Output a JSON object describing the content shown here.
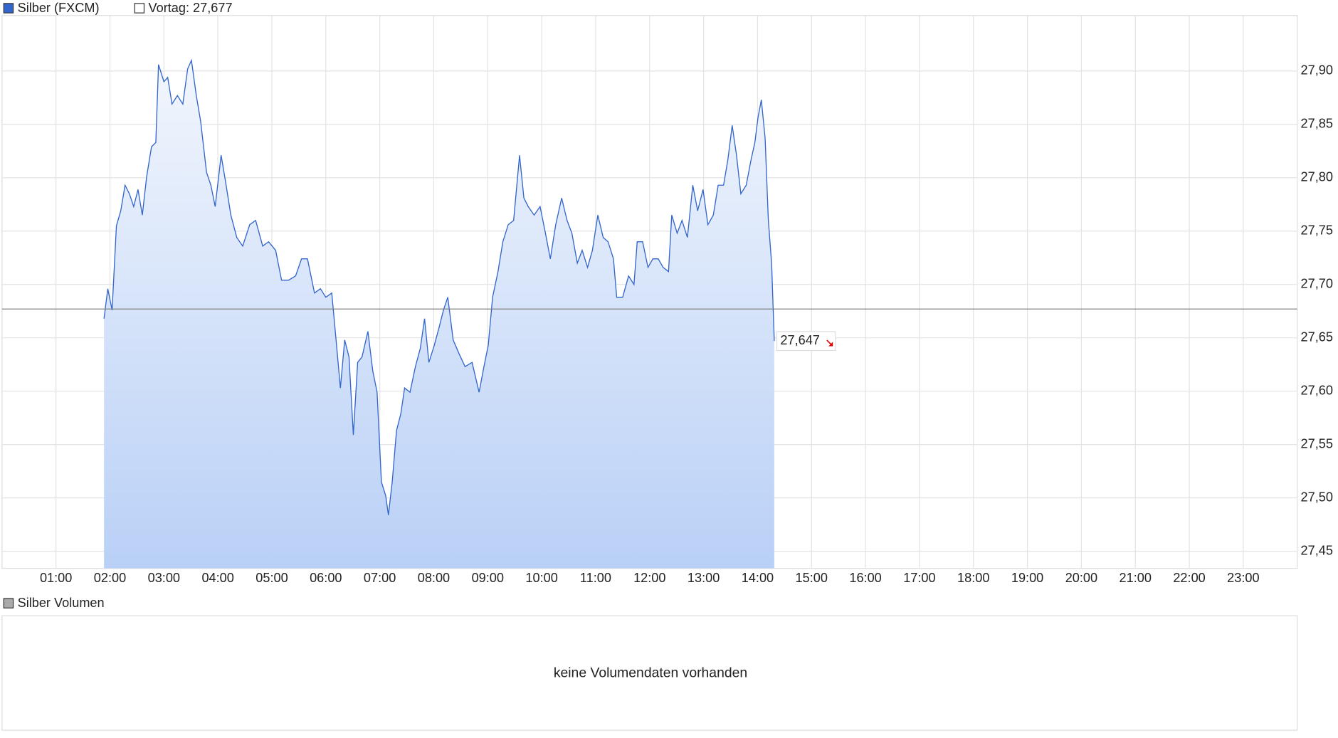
{
  "chart_data": [
    {
      "type": "area",
      "series": [
        {
          "name": "Silber (FXCM)",
          "color": "#3366cc",
          "x": [
            1.89,
            1.96,
            2.04,
            2.12,
            2.2,
            2.28,
            2.36,
            2.44,
            2.52,
            2.6,
            2.68,
            2.77,
            2.85,
            2.9,
            3.0,
            3.07,
            3.15,
            3.25,
            3.35,
            3.44,
            3.51,
            3.6,
            3.68,
            3.79,
            3.87,
            3.95,
            4.06,
            4.14,
            4.24,
            4.35,
            4.46,
            4.59,
            4.7,
            4.83,
            4.94,
            5.07,
            5.18,
            5.31,
            5.44,
            5.55,
            5.66,
            5.79,
            5.9,
            6.0,
            6.11,
            6.19,
            6.27,
            6.35,
            6.43,
            6.51,
            6.59,
            6.67,
            6.78,
            6.87,
            6.95,
            7.03,
            7.11,
            7.16,
            7.23,
            7.31,
            7.39,
            7.46,
            7.56,
            7.66,
            7.75,
            7.83,
            7.91,
            8.01,
            8.1,
            8.18,
            8.26,
            8.36,
            8.47,
            8.58,
            8.71,
            8.84,
            8.93,
            9.01,
            9.09,
            9.19,
            9.28,
            9.38,
            9.48,
            9.59,
            9.67,
            9.75,
            9.86,
            9.97,
            10.07,
            10.16,
            10.26,
            10.37,
            10.47,
            10.56,
            10.66,
            10.75,
            10.85,
            10.94,
            11.04,
            11.14,
            11.23,
            11.33,
            11.39,
            11.5,
            11.61,
            11.71,
            11.77,
            11.87,
            11.97,
            12.06,
            12.16,
            12.25,
            12.35,
            12.41,
            12.51,
            12.6,
            12.7,
            12.8,
            12.89,
            12.99,
            13.08,
            13.18,
            13.27,
            13.37,
            13.45,
            13.53,
            13.61,
            13.69,
            13.79,
            13.88,
            13.95,
            14.01,
            14.07,
            14.14,
            14.2,
            14.26,
            14.31
          ],
          "values": [
            27.668,
            27.696,
            27.676,
            27.755,
            27.769,
            27.793,
            27.785,
            27.773,
            27.789,
            27.765,
            27.801,
            27.829,
            27.833,
            27.906,
            27.89,
            27.894,
            27.869,
            27.877,
            27.869,
            27.902,
            27.91,
            27.877,
            27.853,
            27.805,
            27.793,
            27.773,
            27.821,
            27.797,
            27.765,
            27.744,
            27.736,
            27.756,
            27.76,
            27.736,
            27.74,
            27.732,
            27.704,
            27.704,
            27.708,
            27.724,
            27.724,
            27.692,
            27.696,
            27.688,
            27.692,
            27.648,
            27.603,
            27.648,
            27.632,
            27.559,
            27.627,
            27.632,
            27.656,
            27.619,
            27.599,
            27.515,
            27.502,
            27.484,
            27.515,
            27.563,
            27.579,
            27.603,
            27.599,
            27.623,
            27.64,
            27.668,
            27.627,
            27.643,
            27.66,
            27.676,
            27.688,
            27.648,
            27.635,
            27.623,
            27.627,
            27.599,
            27.623,
            27.643,
            27.688,
            27.712,
            27.74,
            27.756,
            27.76,
            27.821,
            27.781,
            27.773,
            27.765,
            27.773,
            27.748,
            27.724,
            27.756,
            27.781,
            27.76,
            27.748,
            27.72,
            27.732,
            27.716,
            27.732,
            27.765,
            27.744,
            27.74,
            27.724,
            27.688,
            27.688,
            27.708,
            27.7,
            27.74,
            27.74,
            27.716,
            27.724,
            27.724,
            27.716,
            27.712,
            27.765,
            27.748,
            27.76,
            27.744,
            27.793,
            27.769,
            27.789,
            27.756,
            27.765,
            27.793,
            27.793,
            27.817,
            27.849,
            27.821,
            27.785,
            27.793,
            27.817,
            27.833,
            27.857,
            27.873,
            27.837,
            27.76,
            27.72,
            27.647
          ]
        }
      ],
      "reference_line": {
        "value": 27.677,
        "label": "Vortag: 27,677",
        "color": "#777777"
      },
      "last_value": {
        "value": 27.647,
        "label": "27,647"
      },
      "xlim": [
        0,
        24
      ],
      "xticks": [
        {
          "value": 1,
          "label": "01:00"
        },
        {
          "value": 2,
          "label": "02:00"
        },
        {
          "value": 3,
          "label": "03:00"
        },
        {
          "value": 4,
          "label": "04:00"
        },
        {
          "value": 5,
          "label": "05:00"
        },
        {
          "value": 6,
          "label": "06:00"
        },
        {
          "value": 7,
          "label": "07:00"
        },
        {
          "value": 8,
          "label": "08:00"
        },
        {
          "value": 9,
          "label": "09:00"
        },
        {
          "value": 10,
          "label": "10:00"
        },
        {
          "value": 11,
          "label": "11:00"
        },
        {
          "value": 12,
          "label": "12:00"
        },
        {
          "value": 13,
          "label": "13:00"
        },
        {
          "value": 14,
          "label": "14:00"
        },
        {
          "value": 15,
          "label": "15:00"
        },
        {
          "value": 16,
          "label": "16:00"
        },
        {
          "value": 17,
          "label": "17:00"
        },
        {
          "value": 18,
          "label": "18:00"
        },
        {
          "value": 19,
          "label": "19:00"
        },
        {
          "value": 20,
          "label": "20:00"
        },
        {
          "value": 21,
          "label": "21:00"
        },
        {
          "value": 22,
          "label": "22:00"
        },
        {
          "value": 23,
          "label": "23:00"
        }
      ],
      "ylim": [
        27.434,
        27.952
      ],
      "yticks": [
        {
          "value": 27.45,
          "label": "27,45"
        },
        {
          "value": 27.5,
          "label": "27,50"
        },
        {
          "value": 27.55,
          "label": "27,55"
        },
        {
          "value": 27.6,
          "label": "27,60"
        },
        {
          "value": 27.65,
          "label": "27,65"
        },
        {
          "value": 27.7,
          "label": "27,70"
        },
        {
          "value": 27.75,
          "label": "27,75"
        },
        {
          "value": 27.8,
          "label": "27,80"
        },
        {
          "value": 27.85,
          "label": "27,85"
        },
        {
          "value": 27.9,
          "label": "27,90"
        }
      ],
      "grid": true
    },
    {
      "type": "empty",
      "title": "Silber Volumen",
      "color": "#aaaaaa",
      "message": "keine Volumendaten vorhanden"
    }
  ]
}
